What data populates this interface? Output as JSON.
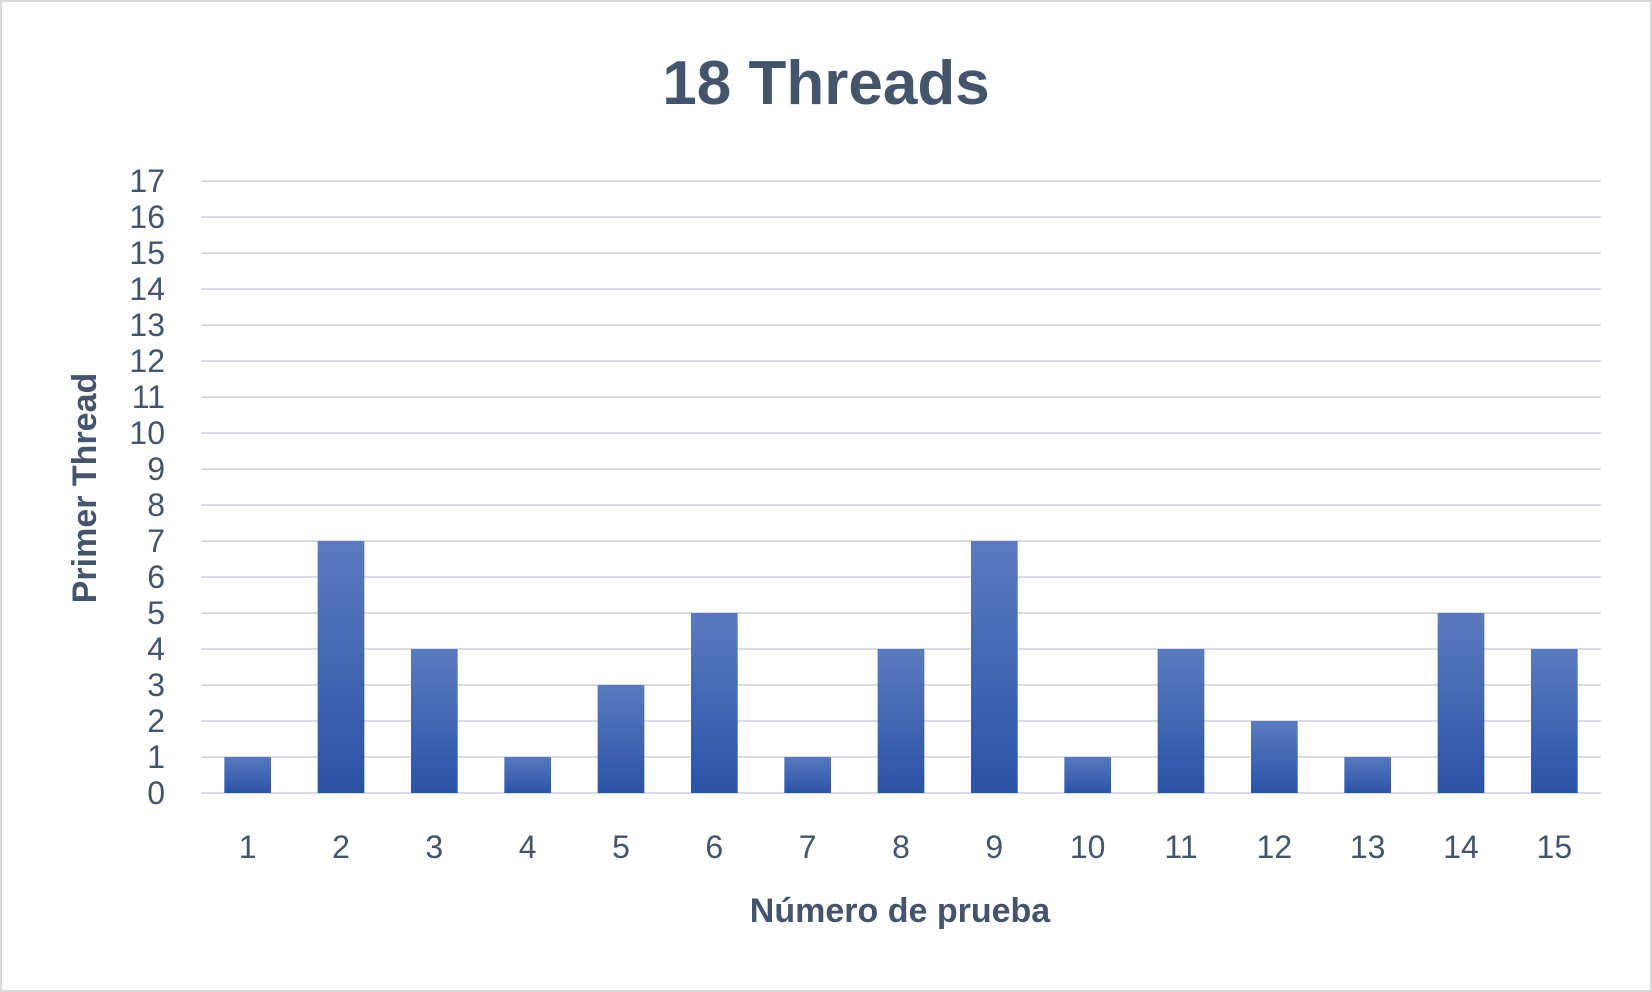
{
  "chart_data": {
    "type": "bar",
    "title": "18 Threads",
    "xlabel": "Número de prueba",
    "ylabel": "Primer Thread",
    "categories": [
      "1",
      "2",
      "3",
      "4",
      "5",
      "6",
      "7",
      "8",
      "9",
      "10",
      "11",
      "12",
      "13",
      "14",
      "15"
    ],
    "values": [
      1,
      7,
      4,
      1,
      3,
      5,
      1,
      4,
      7,
      1,
      4,
      2,
      1,
      5,
      4
    ],
    "ylim": [
      0,
      17
    ],
    "yticks": [
      0,
      1,
      2,
      3,
      4,
      5,
      6,
      7,
      8,
      9,
      10,
      11,
      12,
      13,
      14,
      15,
      16,
      17
    ],
    "grid": true,
    "legend": "none",
    "colors": {
      "bar_top": "#5b7bc0",
      "bar_bottom": "#2a52a6",
      "text": "#44546a",
      "grid": "#d9dde3"
    }
  }
}
